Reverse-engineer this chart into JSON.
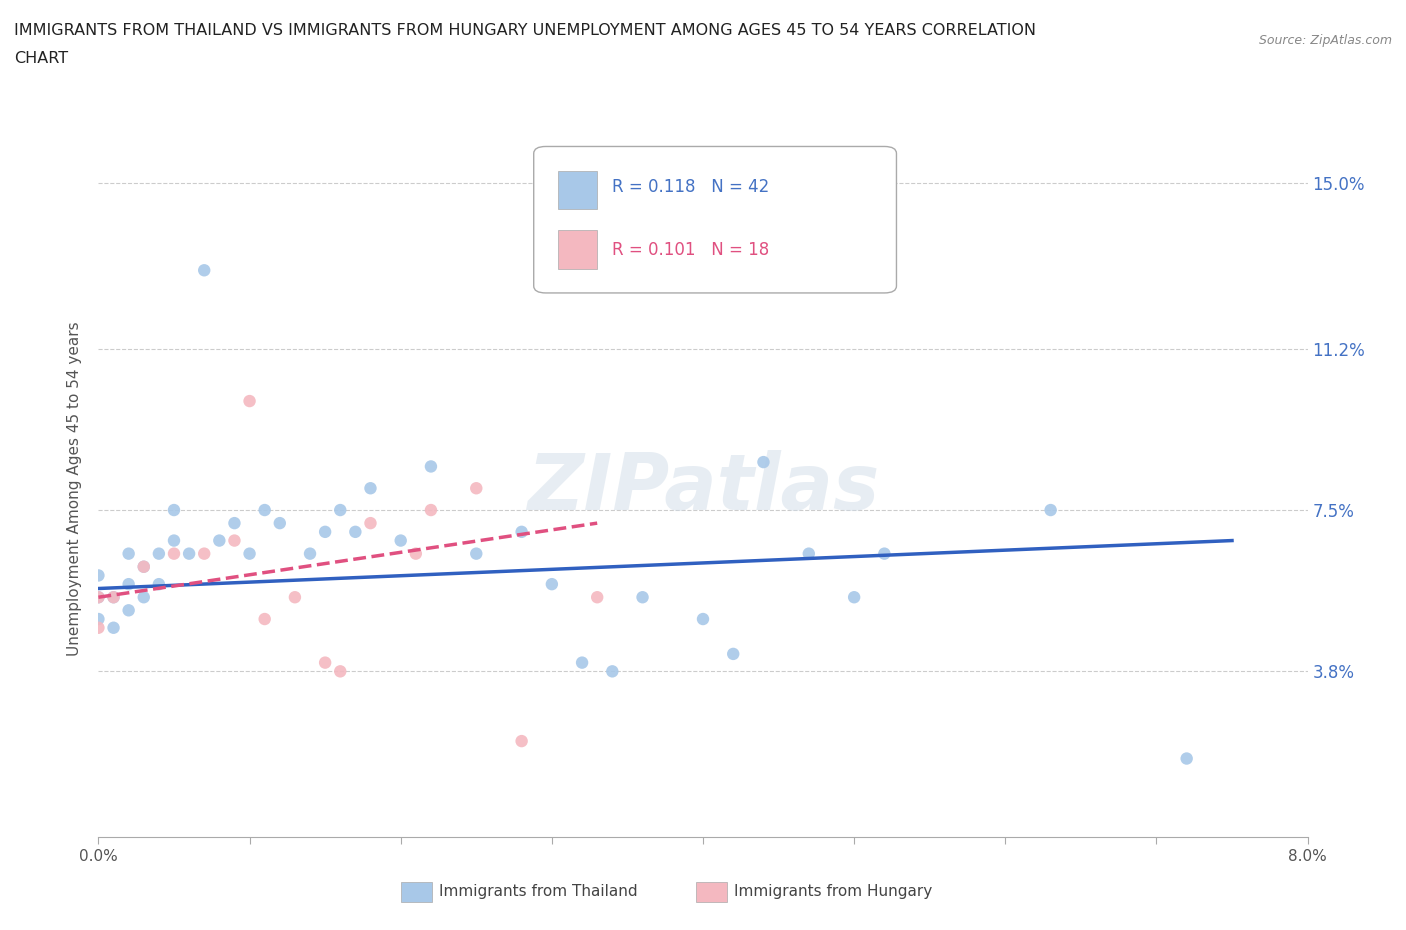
{
  "title_line1": "IMMIGRANTS FROM THAILAND VS IMMIGRANTS FROM HUNGARY UNEMPLOYMENT AMONG AGES 45 TO 54 YEARS CORRELATION",
  "title_line2": "CHART",
  "source_text": "Source: ZipAtlas.com",
  "ylabel": "Unemployment Among Ages 45 to 54 years",
  "xlim": [
    0.0,
    0.08
  ],
  "ylim": [
    0.0,
    0.16
  ],
  "ytick_values": [
    0.038,
    0.075,
    0.112,
    0.15
  ],
  "ytick_labels": [
    "3.8%",
    "7.5%",
    "11.2%",
    "15.0%"
  ],
  "xtick_values": [
    0.0,
    0.01,
    0.02,
    0.03,
    0.04,
    0.05,
    0.06,
    0.07,
    0.08
  ],
  "thailand_color": "#a8c8e8",
  "hungary_color": "#f4b8c0",
  "trend_thailand_color": "#3060c0",
  "trend_hungary_color": "#e05080",
  "legend_R_thailand": "R = 0.118",
  "legend_N_thailand": "N = 42",
  "legend_R_hungary": "R = 0.101",
  "legend_N_hungary": "N = 18",
  "watermark_text": "ZIPatlas",
  "thailand_x": [
    0.0,
    0.0,
    0.0,
    0.001,
    0.001,
    0.002,
    0.002,
    0.002,
    0.003,
    0.003,
    0.004,
    0.004,
    0.005,
    0.005,
    0.006,
    0.007,
    0.008,
    0.009,
    0.01,
    0.011,
    0.012,
    0.014,
    0.015,
    0.016,
    0.017,
    0.018,
    0.02,
    0.022,
    0.025,
    0.028,
    0.03,
    0.032,
    0.034,
    0.036,
    0.04,
    0.042,
    0.044,
    0.047,
    0.05,
    0.052,
    0.063,
    0.072
  ],
  "thailand_y": [
    0.05,
    0.055,
    0.06,
    0.048,
    0.055,
    0.052,
    0.058,
    0.065,
    0.055,
    0.062,
    0.058,
    0.065,
    0.068,
    0.075,
    0.065,
    0.13,
    0.068,
    0.072,
    0.065,
    0.075,
    0.072,
    0.065,
    0.07,
    0.075,
    0.07,
    0.08,
    0.068,
    0.085,
    0.065,
    0.07,
    0.058,
    0.04,
    0.038,
    0.055,
    0.05,
    0.042,
    0.086,
    0.065,
    0.055,
    0.065,
    0.075,
    0.018
  ],
  "hungary_x": [
    0.0,
    0.0,
    0.001,
    0.003,
    0.005,
    0.007,
    0.009,
    0.01,
    0.011,
    0.013,
    0.015,
    0.016,
    0.018,
    0.021,
    0.022,
    0.025,
    0.028,
    0.033
  ],
  "hungary_y": [
    0.048,
    0.055,
    0.055,
    0.062,
    0.065,
    0.065,
    0.068,
    0.1,
    0.05,
    0.055,
    0.04,
    0.038,
    0.072,
    0.065,
    0.075,
    0.08,
    0.022,
    0.055
  ],
  "trend_thailand_start_x": 0.0,
  "trend_thailand_end_x": 0.075,
  "trend_thailand_start_y": 0.057,
  "trend_thailand_end_y": 0.068,
  "trend_hungary_start_x": 0.0,
  "trend_hungary_end_x": 0.033,
  "trend_hungary_start_y": 0.055,
  "trend_hungary_end_y": 0.072,
  "background_color": "#ffffff",
  "grid_color": "#cccccc",
  "scatter_size": 80
}
